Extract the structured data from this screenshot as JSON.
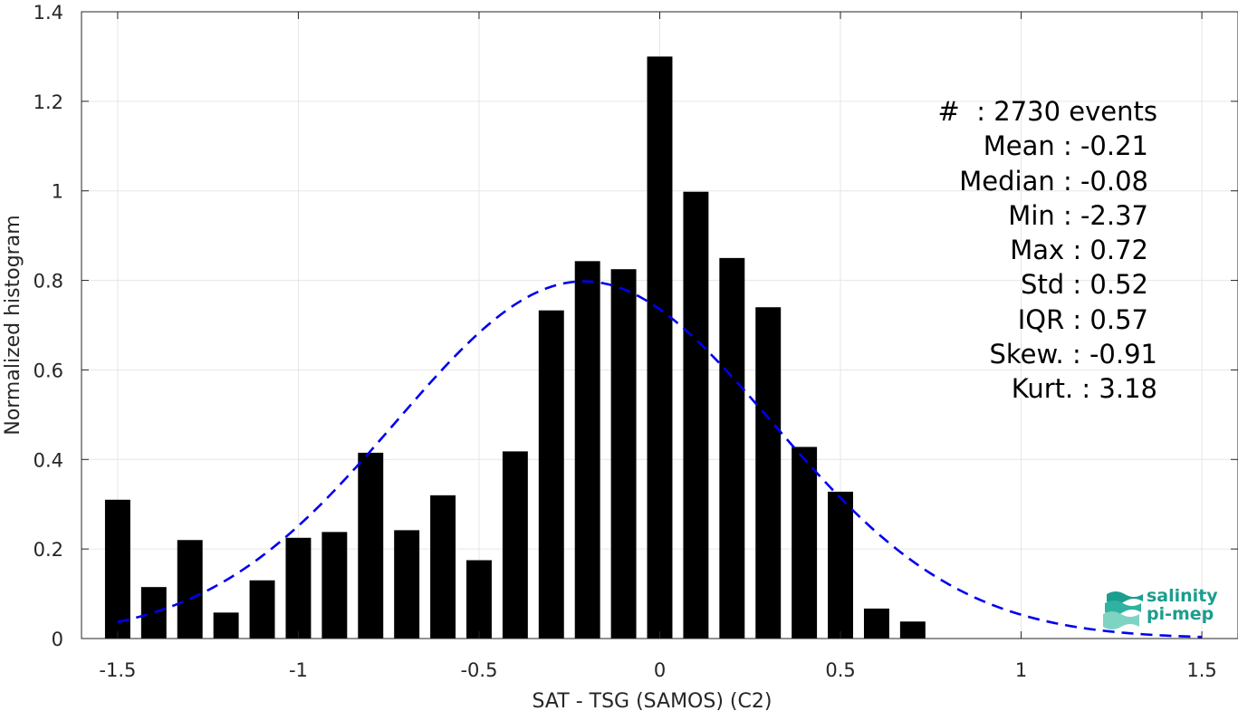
{
  "chart_data": {
    "type": "bar",
    "xlabel": "SAT - TSG (SAMOS) (C2)",
    "ylabel": "Normalized histogram",
    "xlim": [
      -1.6,
      1.6
    ],
    "ylim": [
      0,
      1.4
    ],
    "x_ticks": [
      -1.5,
      -1,
      -0.5,
      0,
      0.5,
      1,
      1.5
    ],
    "x_tick_labels": [
      "-1.5",
      "-1",
      "-0.5",
      "0",
      "0.5",
      "1",
      "1.5"
    ],
    "y_ticks": [
      0,
      0.2,
      0.4,
      0.6,
      0.8,
      1,
      1.2,
      1.4
    ],
    "y_tick_labels": [
      "0",
      "0.2",
      "0.4",
      "0.6",
      "0.8",
      "1",
      "1.2",
      "1.4"
    ],
    "grid": true,
    "bin_width": 0.1,
    "bar_width": 0.07,
    "bar_color": "#000000",
    "bins": [
      {
        "x": -1.5,
        "value": 0.31
      },
      {
        "x": -1.4,
        "value": 0.115
      },
      {
        "x": -1.3,
        "value": 0.22
      },
      {
        "x": -1.2,
        "value": 0.058
      },
      {
        "x": -1.1,
        "value": 0.13
      },
      {
        "x": -1.0,
        "value": 0.225
      },
      {
        "x": -0.9,
        "value": 0.238
      },
      {
        "x": -0.8,
        "value": 0.415
      },
      {
        "x": -0.7,
        "value": 0.242
      },
      {
        "x": -0.6,
        "value": 0.32
      },
      {
        "x": -0.5,
        "value": 0.175
      },
      {
        "x": -0.4,
        "value": 0.418
      },
      {
        "x": -0.3,
        "value": 0.733
      },
      {
        "x": -0.2,
        "value": 0.843
      },
      {
        "x": -0.1,
        "value": 0.825
      },
      {
        "x": 0.0,
        "value": 1.3
      },
      {
        "x": 0.1,
        "value": 0.998
      },
      {
        "x": 0.2,
        "value": 0.85
      },
      {
        "x": 0.3,
        "value": 0.74
      },
      {
        "x": 0.4,
        "value": 0.428
      },
      {
        "x": 0.5,
        "value": 0.328
      },
      {
        "x": 0.6,
        "value": 0.067
      },
      {
        "x": 0.7,
        "value": 0.038
      }
    ],
    "fit_curve": {
      "style": "dashed",
      "color": "#0000ee",
      "mean": -0.21,
      "std": 0.52,
      "x_range": [
        -1.5,
        1.5
      ]
    }
  },
  "stats": [
    "#  : 2730 events",
    "Mean : -0.21",
    "Median : -0.08",
    "Min : -2.37",
    "Max : 0.72",
    "Std : 0.52",
    "IQR : 0.57",
    "Skew. : -0.91",
    "Kurt. : 3.18"
  ],
  "logo": {
    "line1": "salinity",
    "line2": "pi-mep",
    "color": "#1b9e8e"
  }
}
